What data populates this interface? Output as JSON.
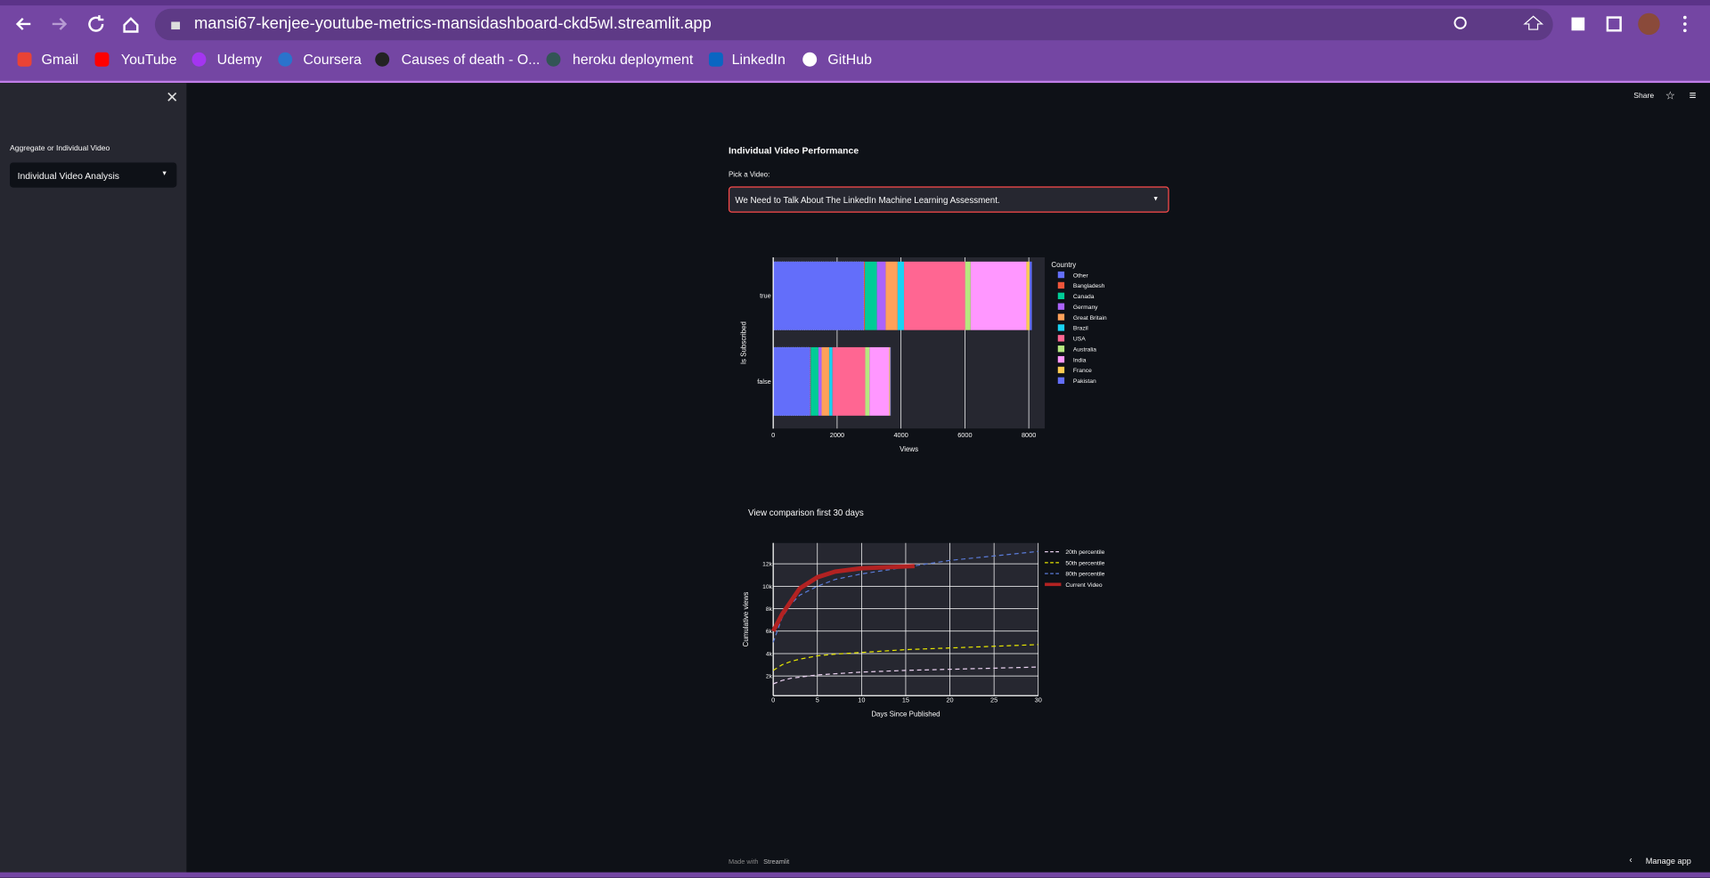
{
  "browser": {
    "url": "mansi67-kenjee-youtube-metrics-mansidashboard-ckd5wl.streamlit.app",
    "bookmarks": [
      "Gmail",
      "YouTube",
      "Udemy",
      "Coursera",
      "Causes of death - O...",
      "heroku deployment",
      "LinkedIn",
      "GitHub"
    ]
  },
  "sidebar": {
    "label": "Aggregate or Individual Video",
    "select": "Individual Video Analysis"
  },
  "header": {
    "share": "Share"
  },
  "main": {
    "title": "Individual Video Performance",
    "picker_label": "Pick a Video:",
    "picker_value": "We Need to Talk About The LinkedIn Machine Learning Assessment."
  },
  "chart_data": [
    {
      "type": "bar",
      "orientation": "horizontal",
      "y_label": "Is Subscribed",
      "x_label": "Views",
      "legend_title": "Country",
      "categories": [
        "true",
        "false"
      ],
      "series": [
        {
          "name": "Other",
          "color": "#636efa",
          "values": [
            2840,
            1160
          ]
        },
        {
          "name": "Bangladesh",
          "color": "#EF553B",
          "values": [
            30,
            15
          ]
        },
        {
          "name": "Canada",
          "color": "#00cc96",
          "values": [
            375,
            240
          ]
        },
        {
          "name": "Germany",
          "color": "#ab63fa",
          "values": [
            275,
            100
          ]
        },
        {
          "name": "Great Britain",
          "color": "#FFA15A",
          "values": [
            375,
            240
          ]
        },
        {
          "name": "Brazil",
          "color": "#19d3f3",
          "values": [
            200,
            100
          ]
        },
        {
          "name": "USA",
          "color": "#FF6692",
          "values": [
            1915,
            1025
          ]
        },
        {
          "name": "Australia",
          "color": "#B6E880",
          "values": [
            170,
            135
          ]
        },
        {
          "name": "India",
          "color": "#FF97FF",
          "values": [
            1745,
            615
          ]
        },
        {
          "name": "France",
          "color": "#FECB52",
          "values": [
            100,
            30
          ]
        },
        {
          "name": "Pakistan",
          "color": "#636efa",
          "values": [
            70,
            20
          ]
        }
      ],
      "xlim": [
        0,
        8500
      ],
      "xticks": [
        0,
        2000,
        4000,
        6000,
        8000
      ],
      "grid": true
    },
    {
      "type": "line",
      "title": "View comparison first 30 days",
      "x_label": "Days Since Published",
      "y_label": "Cumulative views",
      "series": [
        {
          "name": "20th percentile",
          "color": "#e8d0ee",
          "dash": true,
          "x": [
            0,
            1,
            2,
            3,
            5,
            7,
            10,
            15,
            20,
            25,
            30
          ],
          "values": [
            1300,
            1600,
            1800,
            1900,
            2100,
            2200,
            2350,
            2500,
            2600,
            2700,
            2800
          ]
        },
        {
          "name": "50th percentile",
          "color": "#e6e600",
          "dash": true,
          "x": [
            0,
            1,
            2,
            3,
            5,
            7,
            10,
            15,
            20,
            25,
            30
          ],
          "values": [
            2500,
            3000,
            3300,
            3500,
            3800,
            3950,
            4100,
            4350,
            4500,
            4650,
            4800
          ]
        },
        {
          "name": "80th percentile",
          "color": "#5a7bd8",
          "dash": true,
          "x": [
            0,
            1,
            2,
            3,
            5,
            7,
            10,
            15,
            20,
            25,
            30
          ],
          "values": [
            5000,
            7200,
            8400,
            9200,
            10000,
            10600,
            11100,
            11700,
            12300,
            12700,
            13100
          ]
        },
        {
          "name": "Current Video",
          "color": "#b22222",
          "dash": false,
          "x": [
            0,
            1,
            3,
            5,
            7,
            10,
            13,
            16
          ],
          "values": [
            6000,
            7500,
            9800,
            10800,
            11300,
            11600,
            11700,
            11800
          ]
        }
      ],
      "xlim": [
        0,
        30
      ],
      "xticks": [
        0,
        5,
        10,
        15,
        20,
        25,
        30
      ],
      "ylim": [
        250,
        13850
      ],
      "yticks": [
        {
          "value": 2000,
          "label": "2k"
        },
        {
          "value": 4000,
          "label": "4k"
        },
        {
          "value": 6000,
          "label": "6k"
        },
        {
          "value": 8000,
          "label": "8k"
        },
        {
          "value": 10000,
          "label": "10k"
        },
        {
          "value": 12000,
          "label": "12k"
        }
      ],
      "grid": true
    }
  ],
  "footer": {
    "made_with": "Made with",
    "brand": "Streamlit",
    "manage": "Manage app"
  }
}
